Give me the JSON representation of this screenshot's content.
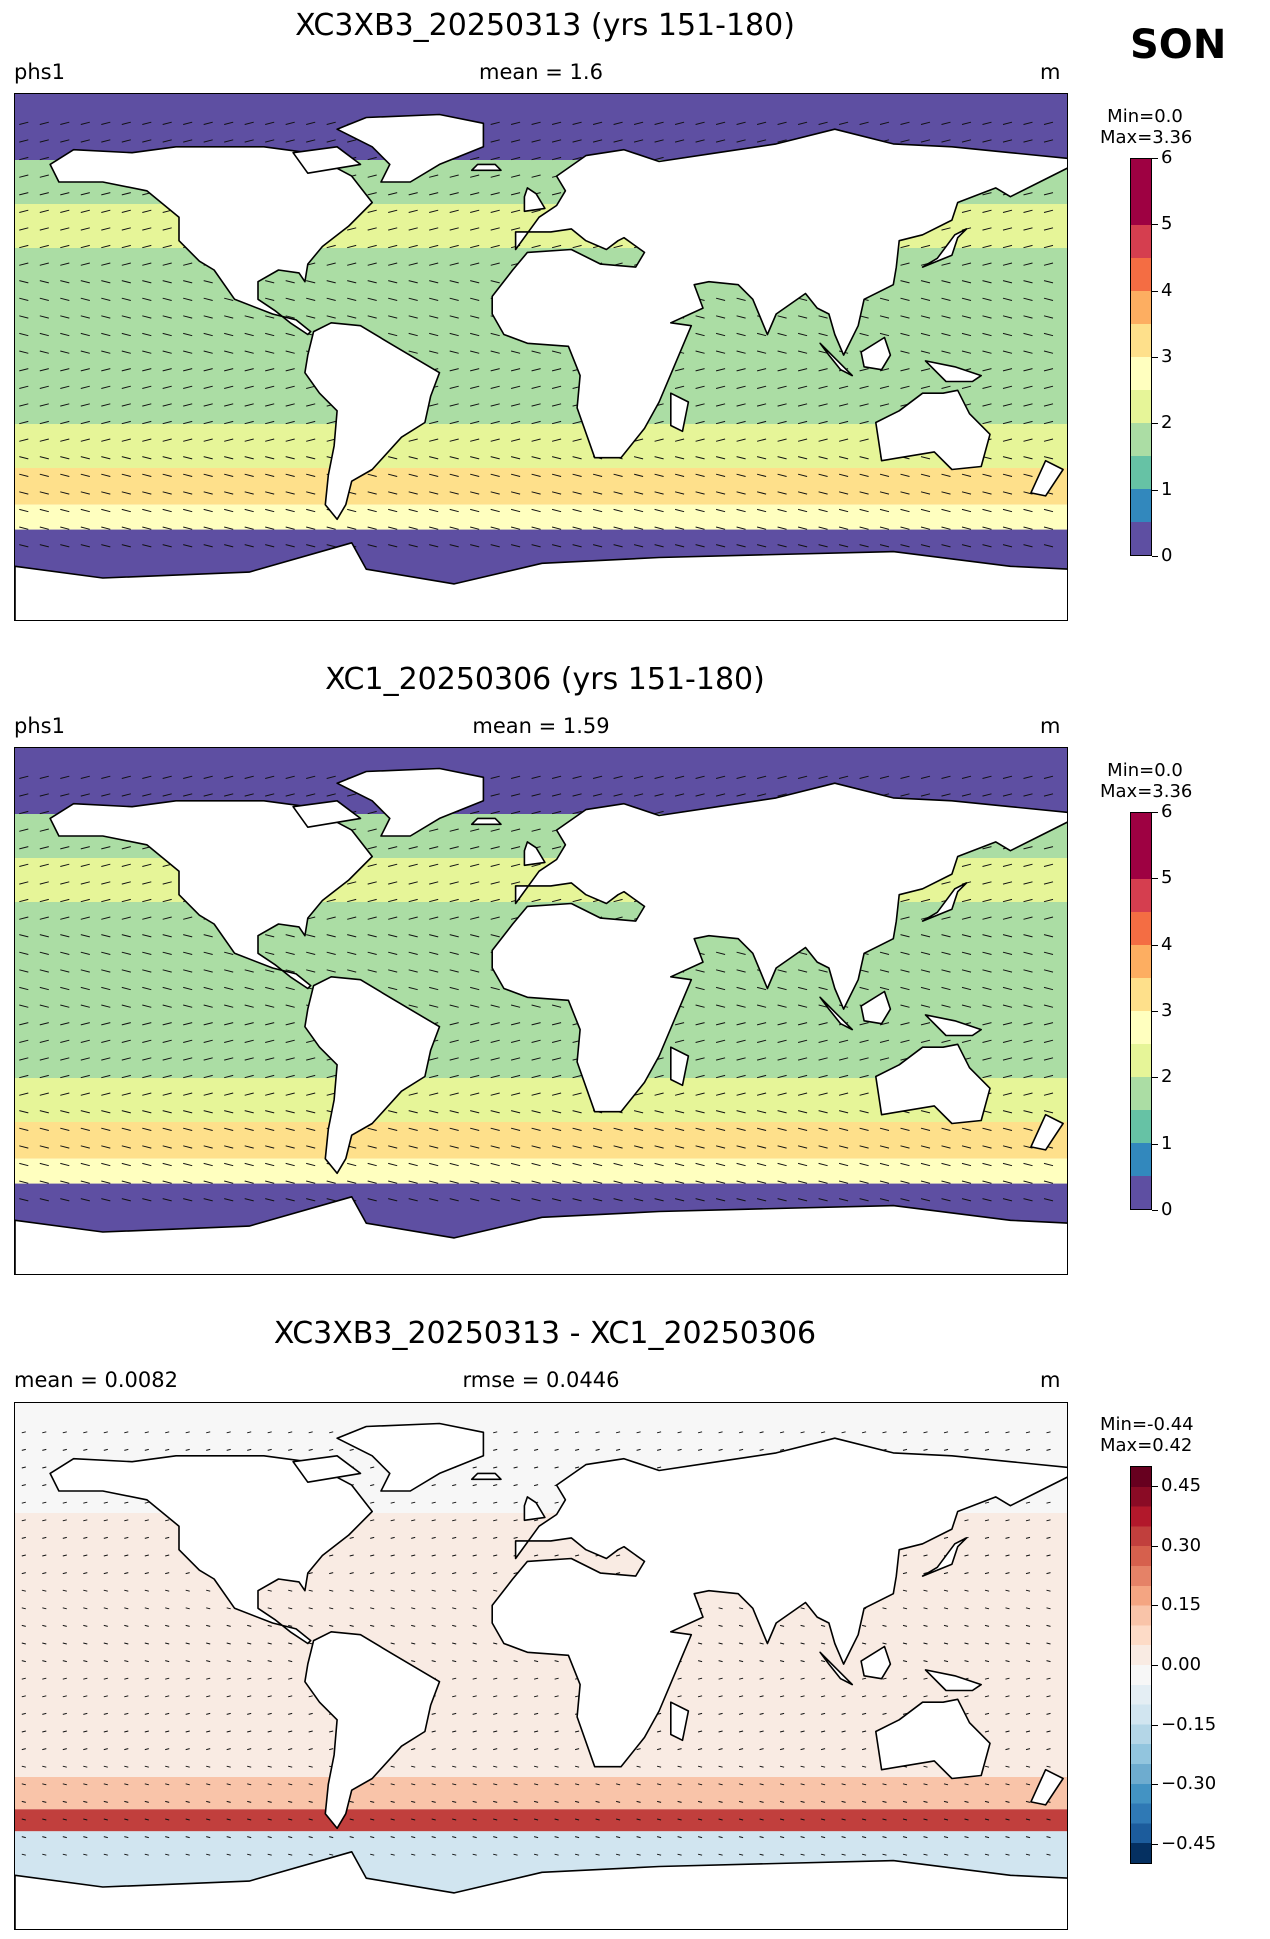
{
  "season": "SON",
  "panels": [
    {
      "title": "XC3XB3_20250313 (yrs 151-180)",
      "left_label": "phs1",
      "center_label": "mean = 1.6",
      "right_label": "m",
      "colorbar": {
        "min_text": "Min=0.0",
        "max_text": "Max=3.36",
        "range": [
          0,
          6
        ],
        "ticks": [
          "0",
          "1",
          "2",
          "3",
          "4",
          "5",
          "6"
        ],
        "colors": [
          "#5e4fa2",
          "#3288bd",
          "#66c2a5",
          "#abdda4",
          "#e6f598",
          "#ffffbf",
          "#fee08b",
          "#fdae61",
          "#f46d43",
          "#d53e4f",
          "#9e0142",
          "#9e0142"
        ]
      }
    },
    {
      "title": "XC1_20250306 (yrs 151-180)",
      "left_label": "phs1",
      "center_label": "mean = 1.59",
      "right_label": "m",
      "colorbar": {
        "min_text": "Min=0.0",
        "max_text": "Max=3.36",
        "range": [
          0,
          6
        ],
        "ticks": [
          "0",
          "1",
          "2",
          "3",
          "4",
          "5",
          "6"
        ],
        "colors": [
          "#5e4fa2",
          "#3288bd",
          "#66c2a5",
          "#abdda4",
          "#e6f598",
          "#ffffbf",
          "#fee08b",
          "#fdae61",
          "#f46d43",
          "#d53e4f",
          "#9e0142",
          "#9e0142"
        ]
      }
    },
    {
      "title": "XC3XB3_20250313 - XC1_20250306",
      "left_label": "mean = 0.0082",
      "center_label": "rmse = 0.0446",
      "right_label": "m",
      "colorbar": {
        "min_text": "Min=-0.44",
        "max_text": "Max=0.42",
        "range": [
          -0.5,
          0.5
        ],
        "ticks": [
          "−0.45",
          "−0.30",
          "−0.15",
          "0.00",
          "0.15",
          "0.30",
          "0.45"
        ],
        "tick_values": [
          -0.45,
          -0.3,
          -0.15,
          0.0,
          0.15,
          0.3,
          0.45
        ],
        "colors": [
          "#053061",
          "#1c5c9c",
          "#2f79b5",
          "#4393c3",
          "#6eaccf",
          "#92c5de",
          "#b4d6e7",
          "#d1e5f0",
          "#e4eef4",
          "#f7f7f7",
          "#f9ebe3",
          "#fddbc7",
          "#f9c4a9",
          "#f4a582",
          "#e58267",
          "#d6604d",
          "#c13f3d",
          "#b2182b",
          "#8a0b25",
          "#67001f"
        ]
      }
    }
  ],
  "chart_data": [
    {
      "type": "heatmap",
      "title": "XC3XB3_20250313 (yrs 151-180)",
      "variable": "phs1",
      "units": "m",
      "mean": 1.6,
      "min": 0.0,
      "max": 3.36,
      "colorbar_range": [
        0,
        6
      ],
      "zonal_profile": [
        {
          "lat": 75,
          "value": 0.3
        },
        {
          "lat": 60,
          "value": 1.6
        },
        {
          "lat": 45,
          "value": 2.4
        },
        {
          "lat": 30,
          "value": 1.8
        },
        {
          "lat": 15,
          "value": 1.7
        },
        {
          "lat": 0,
          "value": 1.5
        },
        {
          "lat": -15,
          "value": 1.7
        },
        {
          "lat": -30,
          "value": 2.2
        },
        {
          "lat": -45,
          "value": 3.1
        },
        {
          "lat": -55,
          "value": 2.6
        },
        {
          "lat": -62,
          "value": 0.3
        }
      ]
    },
    {
      "type": "heatmap",
      "title": "XC1_20250306 (yrs 151-180)",
      "variable": "phs1",
      "units": "m",
      "mean": 1.59,
      "min": 0.0,
      "max": 3.36,
      "colorbar_range": [
        0,
        6
      ],
      "zonal_profile": [
        {
          "lat": 75,
          "value": 0.3
        },
        {
          "lat": 60,
          "value": 1.6
        },
        {
          "lat": 45,
          "value": 2.3
        },
        {
          "lat": 30,
          "value": 1.8
        },
        {
          "lat": 15,
          "value": 1.7
        },
        {
          "lat": 0,
          "value": 1.5
        },
        {
          "lat": -15,
          "value": 1.7
        },
        {
          "lat": -30,
          "value": 2.2
        },
        {
          "lat": -45,
          "value": 3.1
        },
        {
          "lat": -55,
          "value": 2.5
        },
        {
          "lat": -62,
          "value": 0.3
        }
      ]
    },
    {
      "type": "heatmap",
      "title": "XC3XB3_20250313 - XC1_20250306",
      "units": "m",
      "mean": 0.0082,
      "rmse": 0.0446,
      "min": -0.44,
      "max": 0.42,
      "colorbar_range": [
        -0.5,
        0.5
      ],
      "zonal_profile": [
        {
          "lat": 75,
          "value": -0.05
        },
        {
          "lat": 60,
          "value": -0.02
        },
        {
          "lat": 45,
          "value": 0.01
        },
        {
          "lat": 30,
          "value": 0.01
        },
        {
          "lat": 15,
          "value": 0.0
        },
        {
          "lat": 0,
          "value": 0.01
        },
        {
          "lat": -15,
          "value": 0.01
        },
        {
          "lat": -30,
          "value": 0.04
        },
        {
          "lat": -45,
          "value": 0.1
        },
        {
          "lat": -52,
          "value": 0.3
        },
        {
          "lat": -60,
          "value": -0.15
        }
      ]
    }
  ]
}
